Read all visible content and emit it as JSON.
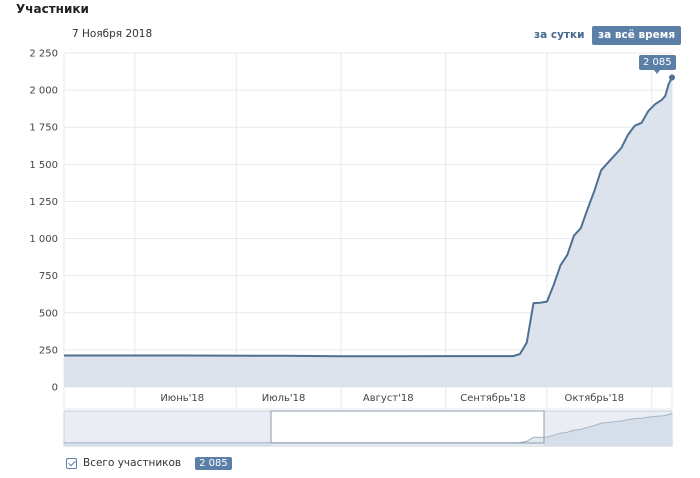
{
  "header": {
    "title": "Участники",
    "date": "7 Ноября 2018",
    "range_day": "за сутки",
    "range_all": "за всё время"
  },
  "tooltip": {
    "value": "2 085"
  },
  "legend": {
    "label": "Всего участников",
    "value": "2 085",
    "checked": true
  },
  "colors": {
    "line": "#4f6f93",
    "fill": "#dde3ec",
    "accent": "#5b7fa6",
    "grid": "#e6e9ee"
  },
  "chart_data": {
    "type": "area",
    "title": "",
    "xlabel": "",
    "ylabel": "",
    "ylim": [
      0,
      2250
    ],
    "y_ticks": [
      0,
      250,
      500,
      750,
      1000,
      1250,
      1500,
      1750,
      2000,
      2250
    ],
    "y_tick_labels": [
      "0",
      "250",
      "500",
      "750",
      "1 000",
      "1 250",
      "1 500",
      "1 750",
      "2 000",
      "2 250"
    ],
    "x_range": [
      "2018-05-11",
      "2018-11-07"
    ],
    "x_tick_labels": [
      {
        "label": "Июнь'18",
        "date": "2018-06-15"
      },
      {
        "label": "Июль'18",
        "date": "2018-07-15"
      },
      {
        "label": "Август'18",
        "date": "2018-08-15"
      },
      {
        "label": "Сентябрь'18",
        "date": "2018-09-15"
      },
      {
        "label": "Октябрь'18",
        "date": "2018-10-15"
      }
    ],
    "series": [
      {
        "name": "Всего участников",
        "points": [
          [
            "2018-05-11",
            212
          ],
          [
            "2018-06-15",
            212
          ],
          [
            "2018-07-15",
            210
          ],
          [
            "2018-08-01",
            207
          ],
          [
            "2018-08-15",
            207
          ],
          [
            "2018-09-01",
            208
          ],
          [
            "2018-09-15",
            208
          ],
          [
            "2018-09-21",
            208
          ],
          [
            "2018-09-23",
            222
          ],
          [
            "2018-09-25",
            300
          ],
          [
            "2018-09-27",
            565
          ],
          [
            "2018-09-29",
            568
          ],
          [
            "2018-10-01",
            575
          ],
          [
            "2018-10-03",
            690
          ],
          [
            "2018-10-05",
            820
          ],
          [
            "2018-10-07",
            890
          ],
          [
            "2018-10-09",
            1020
          ],
          [
            "2018-10-11",
            1070
          ],
          [
            "2018-10-13",
            1200
          ],
          [
            "2018-10-15",
            1320
          ],
          [
            "2018-10-17",
            1460
          ],
          [
            "2018-10-19",
            1510
          ],
          [
            "2018-10-21",
            1560
          ],
          [
            "2018-10-23",
            1610
          ],
          [
            "2018-10-25",
            1700
          ],
          [
            "2018-10-27",
            1760
          ],
          [
            "2018-10-29",
            1780
          ],
          [
            "2018-10-31",
            1860
          ],
          [
            "2018-11-02",
            1905
          ],
          [
            "2018-11-04",
            1935
          ],
          [
            "2018-11-05",
            1960
          ],
          [
            "2018-11-06",
            2040
          ],
          [
            "2018-11-07",
            2085
          ]
        ]
      }
    ]
  }
}
